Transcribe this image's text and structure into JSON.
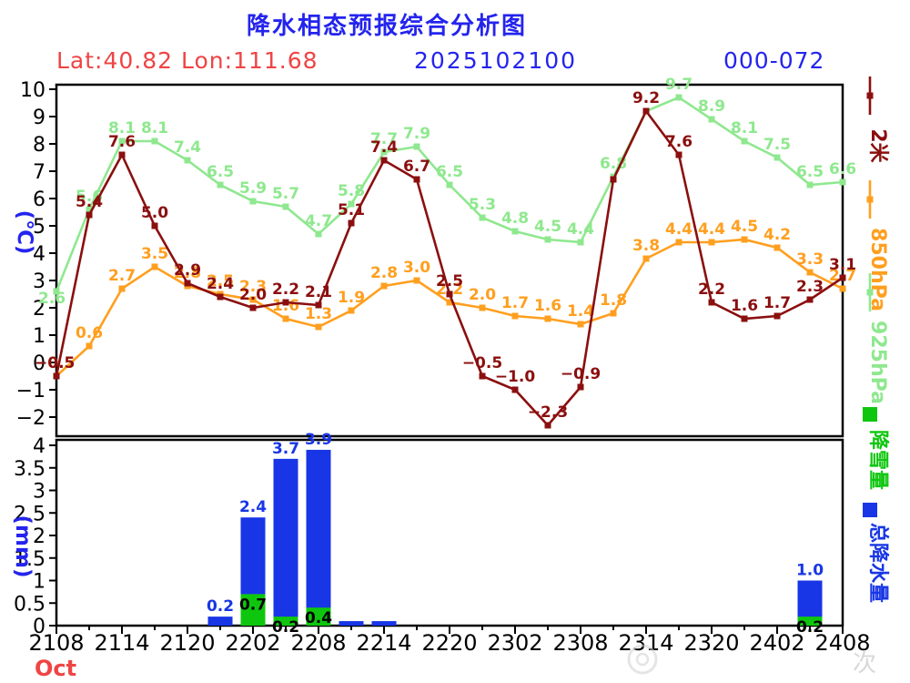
{
  "header": {
    "title": "降水相态预报综合分析图",
    "location": "Lat:40.82 Lon:111.68",
    "init_time": "2025102100",
    "forecast_range": "000-072",
    "colors": {
      "title": "#2424ee",
      "location": "#ef4444",
      "time": "#2424ee",
      "range": "#2424ee"
    }
  },
  "chart_data": [
    {
      "type": "line",
      "panel": "temperature",
      "ylabel": "(℃)",
      "ylabel_color": "#2424ee",
      "ylim": [
        -2.7,
        10.2
      ],
      "yticks": [
        10,
        9,
        8,
        7,
        6,
        5,
        4,
        3,
        2,
        1,
        0,
        -1,
        -2
      ],
      "x_tick_labels": [
        "2108",
        "2114",
        "2120",
        "2202",
        "2208",
        "2214",
        "2220",
        "2302",
        "2308",
        "2314",
        "2320",
        "2402",
        "2408"
      ],
      "hours_per_point": 3,
      "grid": false,
      "series": [
        {
          "name": "925hPa",
          "color": "#8fe88f",
          "values": [
            2.6,
            5.6,
            8.1,
            8.1,
            7.4,
            6.5,
            5.9,
            5.7,
            4.7,
            5.8,
            7.7,
            7.9,
            6.5,
            5.3,
            4.8,
            4.5,
            4.4,
            6.8,
            9.2,
            9.7,
            8.9,
            8.1,
            7.5,
            6.5,
            6.6
          ],
          "hidden_labels": [
            18
          ]
        },
        {
          "name": "850hPa",
          "color": "#ff9f1f",
          "values": [
            -0.5,
            0.6,
            2.7,
            3.5,
            2.8,
            2.5,
            2.3,
            1.6,
            1.3,
            1.9,
            2.8,
            3.0,
            2.2,
            2.0,
            1.7,
            1.6,
            1.4,
            1.8,
            3.8,
            4.4,
            4.4,
            4.5,
            4.2,
            3.3,
            2.7
          ],
          "hidden_labels": []
        },
        {
          "name": "2米",
          "color": "#8b0f0f",
          "values": [
            -0.5,
            5.4,
            7.6,
            5.0,
            2.9,
            2.4,
            2.0,
            2.2,
            2.1,
            5.1,
            7.4,
            6.7,
            2.5,
            -0.5,
            -1.0,
            -2.3,
            -0.9,
            6.7,
            9.2,
            7.6,
            2.2,
            1.6,
            1.7,
            2.3,
            3.1
          ],
          "hidden_labels": [
            17
          ]
        }
      ]
    },
    {
      "type": "bar",
      "panel": "precipitation",
      "ylabel": "(mm)",
      "ylabel_color": "#2424ee",
      "ylim": [
        0,
        4.15
      ],
      "yticks": [
        4,
        3.5,
        3,
        2.5,
        2,
        1.5,
        1,
        0.5,
        0
      ],
      "series_names": {
        "total": "总降水量",
        "snow": "降雪量"
      },
      "series_colors": {
        "total": "#1836e6",
        "snow": "#0fc60f"
      },
      "snow_label_color": "#000000",
      "bars": [
        {
          "index": 5,
          "total": 0.2,
          "snow": 0,
          "total_label": "0.2",
          "snow_label": ""
        },
        {
          "index": 6,
          "total": 2.4,
          "snow": 0.7,
          "total_label": "2.4",
          "snow_label": "0.7"
        },
        {
          "index": 7,
          "total": 3.7,
          "snow": 0.2,
          "total_label": "3.7",
          "snow_label": "0.2"
        },
        {
          "index": 8,
          "total": 3.9,
          "snow": 0.4,
          "total_label": "3.9",
          "snow_label": "0.4"
        },
        {
          "index": 9,
          "total": 0.1,
          "snow": 0,
          "total_label": "",
          "snow_label": ""
        },
        {
          "index": 10,
          "total": 0.1,
          "snow": 0,
          "total_label": "",
          "snow_label": ""
        },
        {
          "index": 23,
          "total": 1.0,
          "snow": 0.2,
          "total_label": "1.0",
          "snow_label": "0.2"
        }
      ]
    }
  ],
  "x_axis": {
    "tick_labels": [
      "2108",
      "2114",
      "2120",
      "2202",
      "2208",
      "2214",
      "2220",
      "2302",
      "2308",
      "2314",
      "2320",
      "2402",
      "2408"
    ],
    "month_label": "Oct",
    "month_color": "#ef4444"
  },
  "legend": {
    "items": [
      {
        "label": "2米",
        "color": "#8b0f0f",
        "symbol": "line"
      },
      {
        "label": "850hPa",
        "color": "#ff9f1f",
        "symbol": "line"
      },
      {
        "label": "925hPa",
        "color": "#8fe88f",
        "symbol": "line"
      },
      {
        "label": "降雪量",
        "color": "#0fc60f",
        "symbol": "square"
      },
      {
        "label": "总降水量",
        "color": "#1836e6",
        "symbol": "square"
      }
    ]
  },
  "watermark": {
    "text": "次",
    "color": "#cfcfcf"
  }
}
